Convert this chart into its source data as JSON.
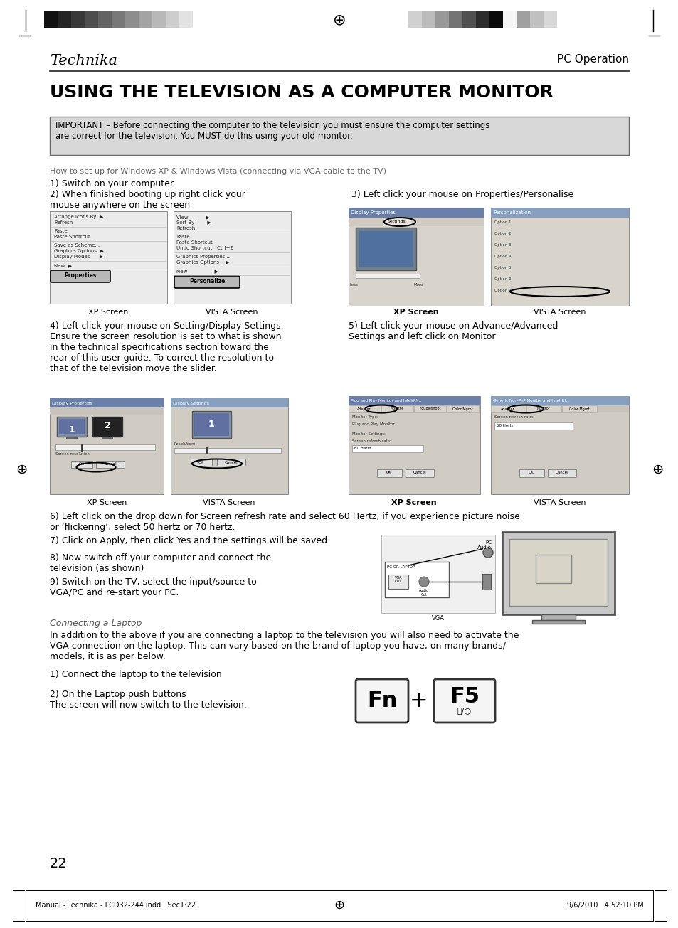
{
  "page_bg": "#ffffff",
  "brand_name": "Technika",
  "section_title": "PC Operation",
  "main_title": "USING THE TELEVISION AS A COMPUTER MONITOR",
  "important_box_text": "IMPORTANT – Before connecting the computer to the television you must ensure the computer settings\nare correct for the television. You MUST do this using your old monitor.",
  "important_box_bg": "#d8d8d8",
  "setup_subtitle": "How to set up for Windows XP & Windows Vista (connecting via VGA cable to the TV)",
  "step1": "1) Switch on your computer",
  "step2": "2) When finished booting up right click your\nmouse anywhere on the screen",
  "step3": "3) Left click your mouse on Properties/Personalise",
  "step4": "4) Left click your mouse on Setting/Display Settings.\nEnsure the screen resolution is set to what is shown\nin the technical specifications section toward the\nrear of this user guide. To correct the resolution to\nthat of the television move the slider.",
  "step5": "5) Left click your mouse on Advance/Advanced\nSettings and left click on Monitor",
  "step6": "6) Left click on the drop down for Screen refresh rate and select 60 Hertz, if you experience picture noise\nor ‘flickering’, select 50 hertz or 70 hertz.",
  "step7": "7) Click on Apply, then click Yes and the settings will be saved.",
  "step8": "8) Now switch off your computer and connect the\ntelevision (as shown)",
  "step9": "9) Switch on the TV, select the input/source to\nVGA/PC and re-start your PC.",
  "xp_label1": "XP Screen",
  "vista_label1": "VISTA Screen",
  "xp_label2": "XP Screen",
  "vista_label2": "VISTA Screen",
  "xp_label3": "XP Screen",
  "vista_label3": "VISTA Screen",
  "xp_label4": "XP Screen",
  "vista_label4": "VISTA Screen",
  "connecting_laptop_title": "Connecting a Laptop",
  "connecting_laptop_text": "In addition to the above if you are connecting a laptop to the television you will also need to activate the\nVGA connection on the laptop. This can vary based on the brand of laptop you have, on many brands/\nmodels, it is as per below.",
  "laptop_step1": "1) Connect the laptop to the television",
  "laptop_step2": "2) On the Laptop push buttons\nThe screen will now switch to the television.",
  "page_number": "22",
  "footer_left": "Manual - Technika - LCD32-244.indd   Sec1:22",
  "footer_right": "9/6/2010   4:52:10 PM",
  "bar_colors_left": [
    "#111111",
    "#252525",
    "#393939",
    "#4e4e4e",
    "#636363",
    "#787878",
    "#8d8d8d",
    "#a3a3a3",
    "#b8b8b8",
    "#cdcdcd",
    "#e2e2e2"
  ],
  "bar_colors_right": [
    "#d0d0d0",
    "#bcbcbc",
    "#989898",
    "#747474",
    "#505050",
    "#2c2c2c",
    "#0a0a0a",
    "#f5f5f5",
    "#a0a0a0",
    "#c0c0c0",
    "#d8d8d8"
  ]
}
